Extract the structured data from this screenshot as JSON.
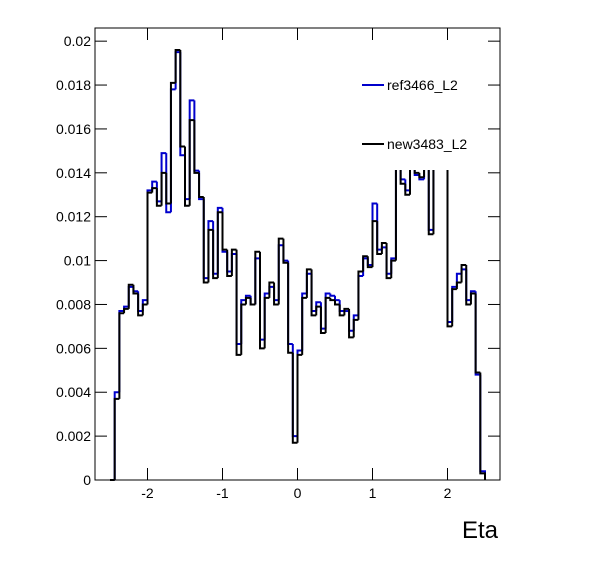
{
  "chart_data": {
    "type": "histogram",
    "x_label": "Eta",
    "bins": [
      -2.5,
      -2.4375,
      -2.375,
      -2.3125,
      -2.25,
      -2.1875,
      -2.125,
      -2.0625,
      -2,
      -1.9375,
      -1.875,
      -1.8125,
      -1.75,
      -1.6875,
      -1.625,
      -1.5625,
      -1.5,
      -1.4375,
      -1.375,
      -1.3125,
      -1.25,
      -1.1875,
      -1.125,
      -1.0625,
      -1,
      -0.9375,
      -0.875,
      -0.8125,
      -0.75,
      -0.6875,
      -0.625,
      -0.5625,
      -0.5,
      -0.4375,
      -0.375,
      -0.3125,
      -0.25,
      -0.1875,
      -0.125,
      -0.0625,
      0,
      0.0625,
      0.125,
      0.1875,
      0.25,
      0.3125,
      0.375,
      0.4375,
      0.5,
      0.5625,
      0.625,
      0.6875,
      0.75,
      0.8125,
      0.875,
      0.9375,
      1,
      1.0625,
      1.125,
      1.1875,
      1.25,
      1.3125,
      1.375,
      1.4375,
      1.5,
      1.5625,
      1.625,
      1.6875,
      1.75,
      1.8125,
      1.875,
      1.9375,
      2,
      2.0625,
      2.125,
      2.1875,
      2.25,
      2.3125,
      2.375,
      2.4375,
      2.5
    ],
    "series": [
      {
        "name": "ref3466_L2",
        "color": "#0000cc",
        "values": [
          0,
          0.004,
          0.0077,
          0.0079,
          0.0088,
          0.0086,
          0.0077,
          0.0082,
          0.0132,
          0.0136,
          0.0127,
          0.0149,
          0.0122,
          0.0178,
          0.0195,
          0.0148,
          0.0128,
          0.0173,
          0.0141,
          0.0128,
          0.0092,
          0.0118,
          0.0094,
          0.0124,
          0.0104,
          0.0095,
          0.0103,
          0.0062,
          0.0082,
          0.0084,
          0.008,
          0.0101,
          0.0064,
          0.0085,
          0.0088,
          0.0082,
          0.0107,
          0.01,
          0.0062,
          0.002,
          0.0059,
          0.0085,
          0.0094,
          0.0077,
          0.0081,
          0.0069,
          0.0085,
          0.0084,
          0.0082,
          0.0077,
          0.0077,
          0.0068,
          0.0075,
          0.0093,
          0.0101,
          0.0098,
          0.0126,
          0.0105,
          0.0106,
          0.0094,
          0.0101,
          0.0153,
          0.0137,
          0.0132,
          0.0148,
          0.0139,
          0.0137,
          0.0148,
          0.0114,
          0.0148,
          0.0151,
          0.0149,
          0.0072,
          0.0088,
          0.0094,
          0.0096,
          0.0082,
          0.0086,
          0.0048,
          0.0004
        ]
      },
      {
        "name": "new3483_L2",
        "color": "#000000",
        "values": [
          0,
          0.0037,
          0.0076,
          0.0078,
          0.0089,
          0.0085,
          0.0075,
          0.008,
          0.0131,
          0.0133,
          0.0125,
          0.014,
          0.0126,
          0.0181,
          0.0196,
          0.0152,
          0.0125,
          0.0164,
          0.014,
          0.0129,
          0.009,
          0.0114,
          0.0092,
          0.0122,
          0.0105,
          0.0093,
          0.0105,
          0.0057,
          0.008,
          0.0083,
          0.008,
          0.0104,
          0.006,
          0.0083,
          0.009,
          0.008,
          0.011,
          0.0099,
          0.0058,
          0.0017,
          0.0057,
          0.0083,
          0.0096,
          0.0075,
          0.0079,
          0.0067,
          0.0083,
          0.0082,
          0.008,
          0.0075,
          0.0078,
          0.0065,
          0.0073,
          0.0095,
          0.0102,
          0.0097,
          0.0118,
          0.0103,
          0.0108,
          0.0092,
          0.01,
          0.0155,
          0.0135,
          0.013,
          0.015,
          0.014,
          0.0138,
          0.015,
          0.0112,
          0.015,
          0.015,
          0.015,
          0.007,
          0.0087,
          0.009,
          0.0098,
          0.008,
          0.0085,
          0.0049,
          0.0003
        ]
      }
    ],
    "xlim": [
      -2.7,
      2.7
    ],
    "ylim": [
      0,
      0.0206
    ],
    "xticks": [
      -2,
      -1,
      0,
      1,
      2
    ],
    "yticks": [
      0,
      0.002,
      0.004,
      0.006,
      0.008,
      0.01,
      0.012,
      0.014,
      0.016,
      0.018,
      0.02
    ],
    "legend": "top-right"
  }
}
